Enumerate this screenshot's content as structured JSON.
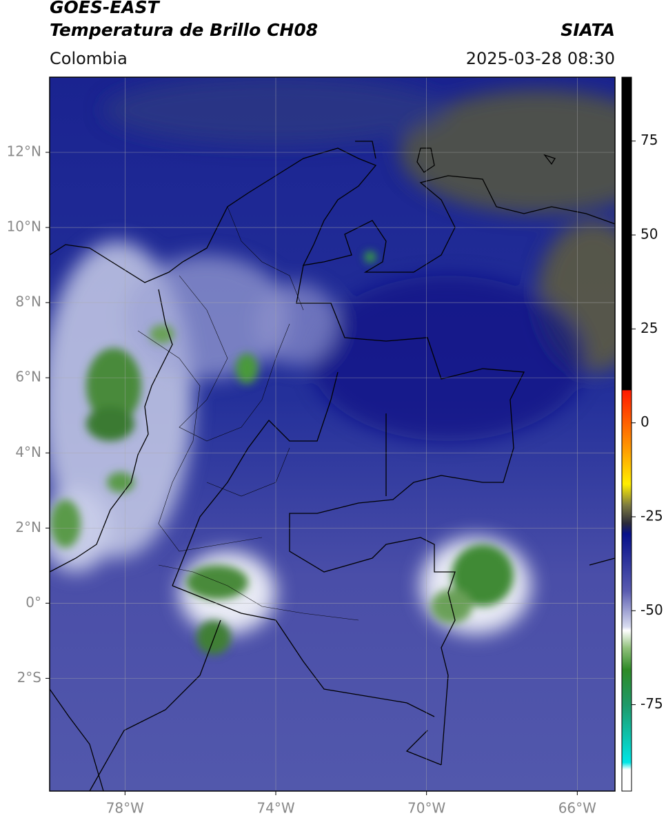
{
  "header": {
    "title": "GOES-EAST",
    "subtitle": "Temperatura de Brillo CH08",
    "source": "SIATA",
    "region": "Colombia",
    "datetime": "2025-03-28 08:30"
  },
  "map": {
    "xlim": [
      -80,
      -65
    ],
    "ylim": [
      -5,
      14
    ],
    "xticks": [
      {
        "value": -78,
        "label": "78°W"
      },
      {
        "value": -74,
        "label": "74°W"
      },
      {
        "value": -70,
        "label": "70°W"
      },
      {
        "value": -66,
        "label": "66°W"
      }
    ],
    "yticks": [
      {
        "value": 12,
        "label": "12°N"
      },
      {
        "value": 10,
        "label": "10°N"
      },
      {
        "value": 8,
        "label": "8°N"
      },
      {
        "value": 6,
        "label": "6°N"
      },
      {
        "value": 4,
        "label": "4°N"
      },
      {
        "value": 2,
        "label": "2°N"
      },
      {
        "value": 0,
        "label": "0°"
      },
      {
        "value": -2,
        "label": "2°S"
      }
    ],
    "grid": true
  },
  "colorbar": {
    "clim": [
      -98,
      92
    ],
    "ticks": [
      75,
      50,
      25,
      0,
      -25,
      -50,
      -75
    ]
  }
}
